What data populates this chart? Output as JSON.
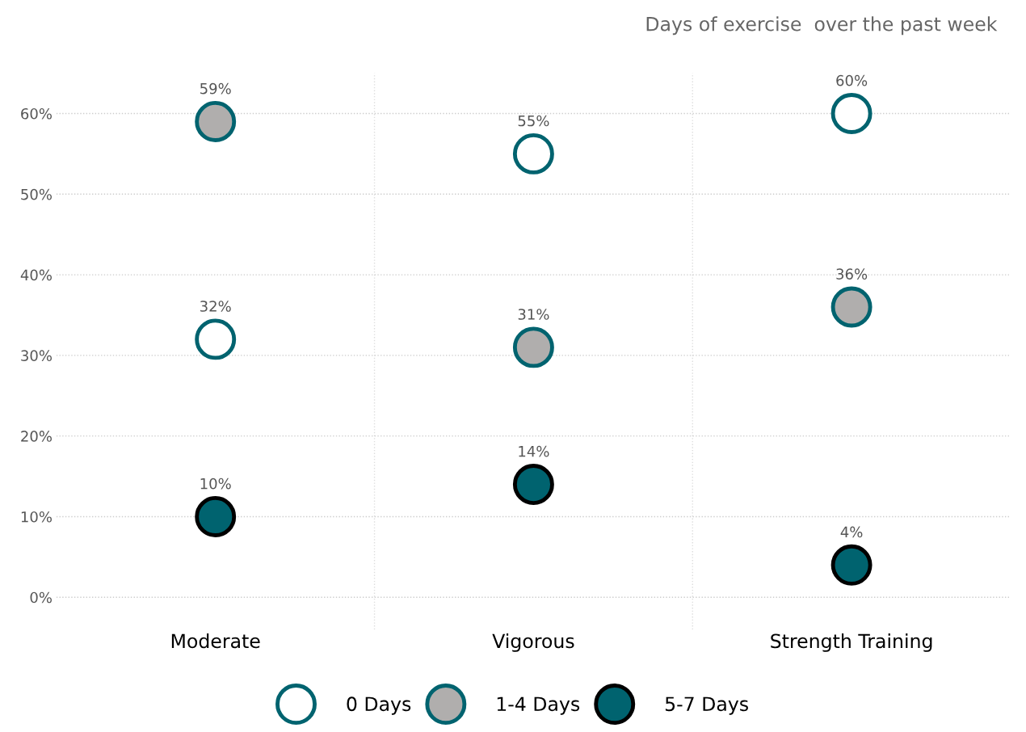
{
  "chart_data": {
    "type": "scatter",
    "title": "Days of exercise  over the past week",
    "categories": [
      "Moderate",
      "Vigorous",
      "Strength Training"
    ],
    "series": [
      {
        "name": "0 Days",
        "color": "#ffffff",
        "values": [
          32,
          55,
          60
        ],
        "value_labels": [
          "32%",
          "55%",
          "60%"
        ]
      },
      {
        "name": "1-4 Days",
        "color": "#b0aead",
        "values": [
          59,
          31,
          36
        ],
        "value_labels": [
          "59%",
          "31%",
          "36%"
        ]
      },
      {
        "name": "5-7 Days",
        "color": "#00636f",
        "values": [
          10,
          14,
          4
        ],
        "value_labels": [
          "10%",
          "14%",
          "4%"
        ]
      }
    ],
    "ylim": [
      -4,
      65
    ],
    "yticks": [
      {
        "value": 0,
        "label": "0%"
      },
      {
        "value": 10,
        "label": "10%"
      },
      {
        "value": 20,
        "label": "20%"
      },
      {
        "value": 30,
        "label": "30%"
      },
      {
        "value": 40,
        "label": "40%"
      },
      {
        "value": 50,
        "label": "50%"
      },
      {
        "value": 60,
        "label": "60%"
      }
    ],
    "grid": true,
    "legend": "bottom",
    "marker": "circle"
  }
}
